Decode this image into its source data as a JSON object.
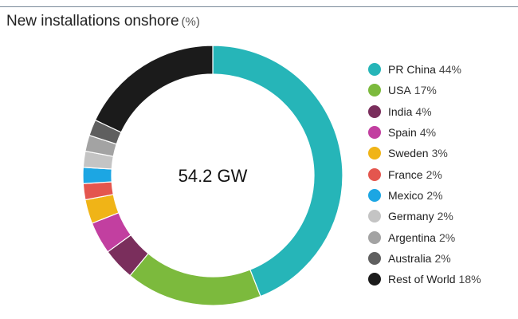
{
  "chart_data": {
    "type": "pie",
    "title": "New installations onshore",
    "title_unit": "(%)",
    "center_label": "54.2 GW",
    "legend_placement": "right",
    "categories": [
      "PR China",
      "USA",
      "India",
      "Spain",
      "Sweden",
      "France",
      "Mexico",
      "Germany",
      "Argentina",
      "Australia",
      "Rest of World"
    ],
    "values": [
      44,
      17,
      4,
      4,
      3,
      2,
      2,
      2,
      2,
      2,
      18
    ],
    "value_labels": [
      "44%",
      "17%",
      "4%",
      "4%",
      "3%",
      "2%",
      "2%",
      "2%",
      "2%",
      "2%",
      "18%"
    ],
    "colors": [
      "#26b5b8",
      "#7cba3d",
      "#7a2e5c",
      "#c23fa0",
      "#f0b417",
      "#e4564e",
      "#1ca6e3",
      "#c4c4c4",
      "#a3a3a3",
      "#5f5f5f",
      "#1b1b1b"
    ]
  }
}
